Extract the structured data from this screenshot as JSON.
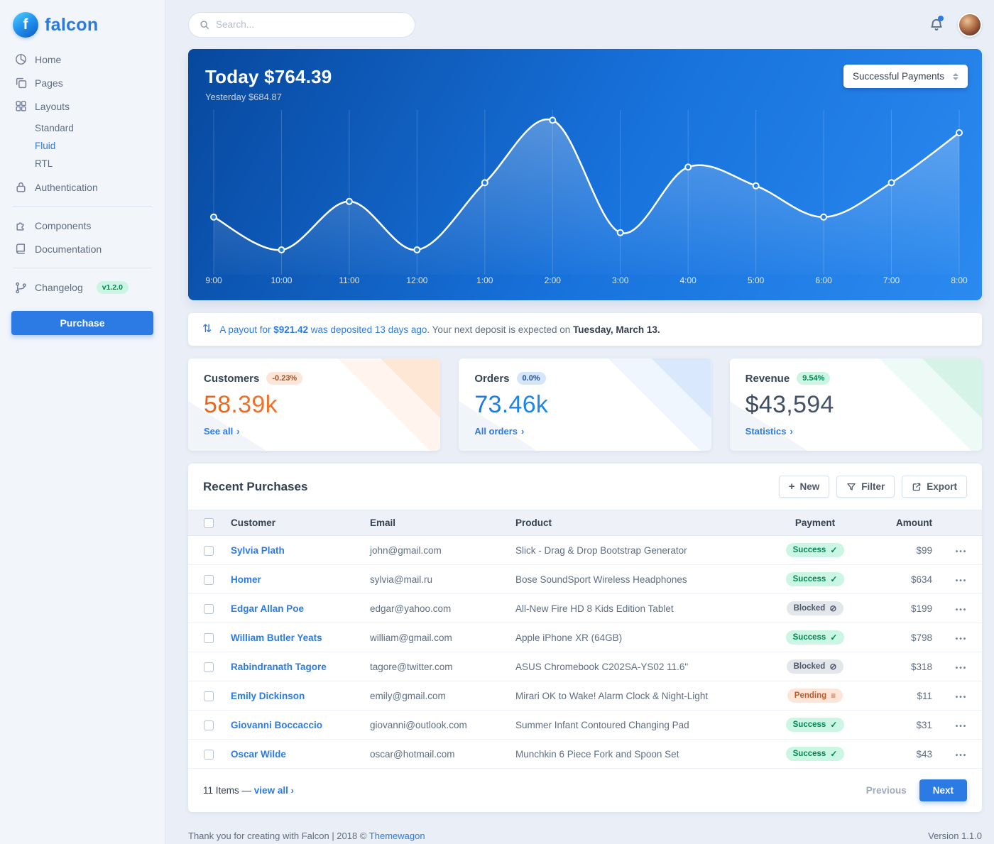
{
  "colors": {
    "primary": "#2c7be5",
    "success_bg": "#ccf6e4",
    "success_text": "#00864e",
    "warn_bg": "#fde6d8",
    "warn_text": "#9d5228",
    "customers_value": "#ed6a2d",
    "orders_value": "#2c9af0",
    "revenue_value": "#44536a",
    "chart_gradient_start": "#07489e",
    "chart_gradient_end": "#2b8af0"
  },
  "icons": {
    "chevron_right": "›",
    "ellipsis": "•••",
    "exchange": "⇅",
    "plus": "+"
  },
  "brand": {
    "name": "falcon"
  },
  "topbar": {
    "search_placeholder": "Search..."
  },
  "sidebar": {
    "items": [
      {
        "label": "Home"
      },
      {
        "label": "Pages"
      },
      {
        "label": "Layouts",
        "children": [
          {
            "label": "Standard"
          },
          {
            "label": "Fluid",
            "active": true
          },
          {
            "label": "RTL"
          }
        ]
      },
      {
        "label": "Authentication"
      },
      {
        "label": "Components"
      },
      {
        "label": "Documentation"
      },
      {
        "label": "Changelog",
        "badge": "v1.2.0"
      }
    ],
    "purchase_label": "Purchase"
  },
  "chart_data": {
    "type": "line",
    "title": "Today $764.39",
    "subtitle": "Yesterday $684.87",
    "select_label": "Successful Payments",
    "x": [
      "9:00",
      "10:00",
      "11:00",
      "12:00",
      "1:00",
      "2:00",
      "3:00",
      "4:00",
      "5:00",
      "6:00",
      "7:00",
      "8:00"
    ],
    "values": [
      36,
      15,
      46,
      15,
      58,
      98,
      26,
      68,
      56,
      36,
      58,
      90
    ],
    "ylim": [
      0,
      100
    ],
    "xlabel": "",
    "ylabel": "",
    "grid": "vertical-only",
    "legend": "none",
    "line_color": "#ffffff",
    "marker": "circle"
  },
  "payout": {
    "link_pre": "A payout for ",
    "amount": "$921.42",
    "link_post": " was deposited 13 days ago",
    "period": ". ",
    "text": "Your next deposit is expected on ",
    "date": "Tuesday, March 13."
  },
  "stats": [
    {
      "title": "Customers",
      "badge": "-0.23%",
      "value": "58.39k",
      "link": "See all"
    },
    {
      "title": "Orders",
      "badge": "0.0%",
      "value": "73.46k",
      "link": "All orders"
    },
    {
      "title": "Revenue",
      "badge": "9.54%",
      "value": "$43,594",
      "link": "Statistics"
    }
  ],
  "purchases": {
    "title": "Recent Purchases",
    "buttons": {
      "new": "New",
      "filter": "Filter",
      "export": "Export"
    },
    "columns": [
      "Customer",
      "Email",
      "Product",
      "Payment",
      "Amount"
    ],
    "status_icons": {
      "Success": "✓",
      "Blocked": "⊘",
      "Pending": "≡"
    },
    "rows": [
      {
        "customer": "Sylvia Plath",
        "email": "john@gmail.com",
        "product": "Slick - Drag & Drop Bootstrap Generator",
        "payment": "Success",
        "amount": "$99"
      },
      {
        "customer": "Homer",
        "email": "sylvia@mail.ru",
        "product": "Bose SoundSport Wireless Headphones",
        "payment": "Success",
        "amount": "$634"
      },
      {
        "customer": "Edgar Allan Poe",
        "email": "edgar@yahoo.com",
        "product": "All-New Fire HD 8 Kids Edition Tablet",
        "payment": "Blocked",
        "amount": "$199"
      },
      {
        "customer": "William Butler Yeats",
        "email": "william@gmail.com",
        "product": "Apple iPhone XR (64GB)",
        "payment": "Success",
        "amount": "$798"
      },
      {
        "customer": "Rabindranath Tagore",
        "email": "tagore@twitter.com",
        "product": "ASUS Chromebook C202SA-YS02 11.6\"",
        "payment": "Blocked",
        "amount": "$318"
      },
      {
        "customer": "Emily Dickinson",
        "email": "emily@gmail.com",
        "product": "Mirari OK to Wake! Alarm Clock & Night-Light",
        "payment": "Pending",
        "amount": "$11"
      },
      {
        "customer": "Giovanni Boccaccio",
        "email": "giovanni@outlook.com",
        "product": "Summer Infant Contoured Changing Pad",
        "payment": "Success",
        "amount": "$31"
      },
      {
        "customer": "Oscar Wilde",
        "email": "oscar@hotmail.com",
        "product": "Munchkin 6 Piece Fork and Spoon Set",
        "payment": "Success",
        "amount": "$43"
      }
    ],
    "footer": {
      "items_text": "11 Items —",
      "view_all": "view all",
      "previous": "Previous",
      "next": "Next"
    }
  },
  "page_footer": {
    "left_pre": "Thank you for creating with Falcon | 2018 © ",
    "brand_link": "Themewagon",
    "version": "Version 1.1.0"
  }
}
